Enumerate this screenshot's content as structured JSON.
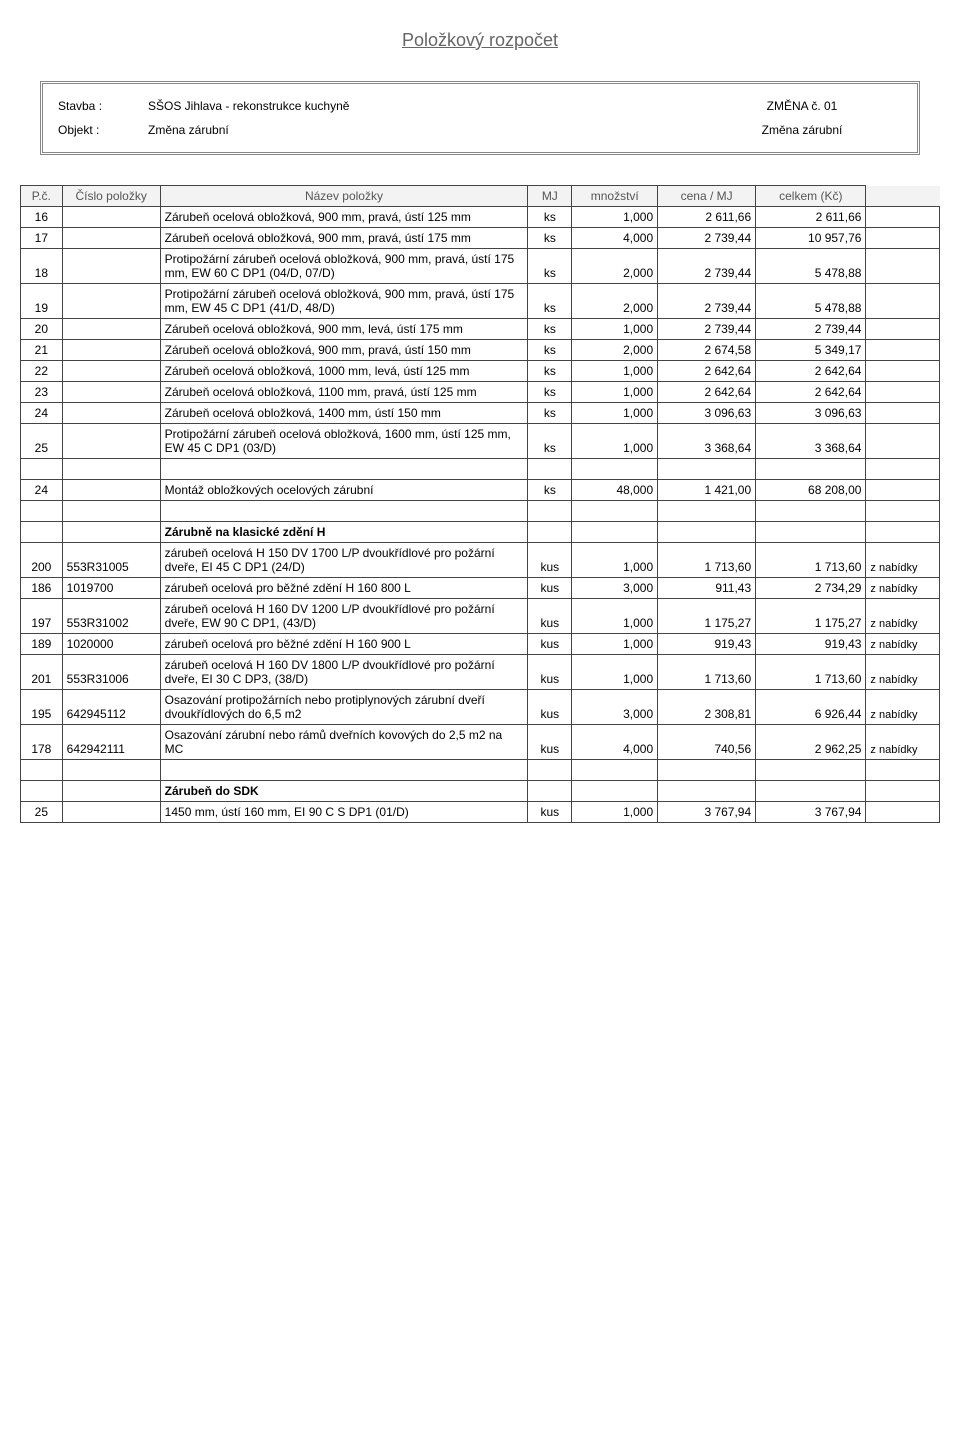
{
  "title": "Položkový rozpočet",
  "header": {
    "stavba_lbl": "Stavba :",
    "stavba_val": "SŠOS Jihlava - rekonstrukce kuchyně",
    "zmena_lbl": "ZMĚNA č. 01",
    "objekt_lbl": "Objekt :",
    "objekt_val": "Změna zárubní",
    "objekt_right": "Změna zárubní"
  },
  "columns": {
    "pc": "P.č.",
    "cislo": "Číslo položky",
    "nazev": "Název položky",
    "mj": "MJ",
    "mnoz": "množství",
    "cena": "cena / MJ",
    "celkem": "celkem (Kč)"
  },
  "rows": [
    {
      "pc": "16",
      "cislo": "",
      "nazev": "Zárubeň ocelová obložková, 900 mm, pravá, ústí 125 mm",
      "mj": "ks",
      "mnoz": "1,000",
      "cena": "2 611,66",
      "celkem": "2 611,66",
      "note": ""
    },
    {
      "pc": "17",
      "cislo": "",
      "nazev": "Zárubeň ocelová obložková, 900 mm, pravá, ústí 175 mm",
      "mj": "ks",
      "mnoz": "4,000",
      "cena": "2 739,44",
      "celkem": "10 957,76",
      "note": ""
    },
    {
      "pc": "18",
      "cislo": "",
      "nazev": "Protipožární zárubeň ocelová obložková, 900 mm, pravá, ústí 175 mm, EW 60 C DP1 (04/D, 07/D)",
      "mj": "ks",
      "mnoz": "2,000",
      "cena": "2 739,44",
      "celkem": "5 478,88",
      "note": ""
    },
    {
      "pc": "19",
      "cislo": "",
      "nazev": "Protipožární zárubeň ocelová obložková, 900 mm, pravá, ústí 175 mm, EW 45 C DP1 (41/D, 48/D)",
      "mj": "ks",
      "mnoz": "2,000",
      "cena": "2 739,44",
      "celkem": "5 478,88",
      "note": ""
    },
    {
      "pc": "20",
      "cislo": "",
      "nazev": "Zárubeň ocelová obložková, 900 mm, levá, ústí 175 mm",
      "mj": "ks",
      "mnoz": "1,000",
      "cena": "2 739,44",
      "celkem": "2 739,44",
      "note": ""
    },
    {
      "pc": "21",
      "cislo": "",
      "nazev": "Zárubeň ocelová obložková, 900 mm, pravá, ústí 150 mm",
      "mj": "ks",
      "mnoz": "2,000",
      "cena": "2 674,58",
      "celkem": "5 349,17",
      "note": ""
    },
    {
      "pc": "22",
      "cislo": "",
      "nazev": "Zárubeň ocelová obložková, 1000 mm, levá, ústí 125 mm",
      "mj": "ks",
      "mnoz": "1,000",
      "cena": "2 642,64",
      "celkem": "2 642,64",
      "note": ""
    },
    {
      "pc": "23",
      "cislo": "",
      "nazev": "Zárubeň ocelová obložková, 1100 mm, pravá, ústí 125 mm",
      "mj": "ks",
      "mnoz": "1,000",
      "cena": "2 642,64",
      "celkem": "2 642,64",
      "note": ""
    },
    {
      "pc": "24",
      "cislo": "",
      "nazev": "Zárubeň ocelová obložková, 1400 mm, ústí 150 mm",
      "mj": "ks",
      "mnoz": "1,000",
      "cena": "3 096,63",
      "celkem": "3 096,63",
      "note": ""
    },
    {
      "pc": "25",
      "cislo": "",
      "nazev": "Protipožární zárubeň ocelová obložková, 1600 mm, ústí 125 mm, EW 45 C DP1 (03/D)",
      "mj": "ks",
      "mnoz": "1,000",
      "cena": "3 368,64",
      "celkem": "3 368,64",
      "note": ""
    },
    {
      "spacer": true
    },
    {
      "pc": "24",
      "cislo": "",
      "nazev": "Montáž obložkových ocelových zárubní",
      "mj": "ks",
      "mnoz": "48,000",
      "cena": "1 421,00",
      "celkem": "68 208,00",
      "note": ""
    },
    {
      "spacer": true
    },
    {
      "section": "Zárubně na klasické zdění H"
    },
    {
      "pc": "200",
      "cislo": "553R31005",
      "nazev": "zárubeň ocelová  H 150 DV 1700 L/P dvoukřídlové pro požární dveře, EI 45 C DP1 (24/D)",
      "mj": "kus",
      "mnoz": "1,000",
      "cena": "1 713,60",
      "celkem": "1 713,60",
      "note": "z nabídky"
    },
    {
      "pc": "186",
      "cislo": "1019700",
      "nazev": "zárubeň ocelová pro běžné zdění H 160 800 L",
      "mj": "kus",
      "mnoz": "3,000",
      "cena": "911,43",
      "celkem": "2 734,29",
      "note": "z nabídky"
    },
    {
      "pc": "197",
      "cislo": "553R31002",
      "nazev": "zárubeň ocelová  H 160 DV 1200 L/P dvoukřídlové pro požární dveře, EW 90 C DP1, (43/D)",
      "mj": "kus",
      "mnoz": "1,000",
      "cena": "1 175,27",
      "celkem": "1 175,27",
      "note": "z nabídky"
    },
    {
      "pc": "189",
      "cislo": "1020000",
      "nazev": "zárubeň ocelová pro běžné zdění H 160 900 L",
      "mj": "kus",
      "mnoz": "1,000",
      "cena": "919,43",
      "celkem": "919,43",
      "note": "z nabídky"
    },
    {
      "pc": "201",
      "cislo": "553R31006",
      "nazev": "zárubeň ocelová  H 160 DV 1800 L/P dvoukřídlové pro požární dveře, EI 30 C DP3, (38/D)",
      "mj": "kus",
      "mnoz": "1,000",
      "cena": "1 713,60",
      "celkem": "1 713,60",
      "note": "z nabídky"
    },
    {
      "pc": "195",
      "cislo": "642945112",
      "nazev": "Osazování protipožárních nebo protiplynových zárubní dveří dvoukřídlových do 6,5 m2",
      "mj": "kus",
      "mnoz": "3,000",
      "cena": "2 308,81",
      "celkem": "6 926,44",
      "note": "z nabídky"
    },
    {
      "pc": "178",
      "cislo": "642942111",
      "nazev": "Osazování zárubní nebo rámů dveřních kovových do 2,5 m2 na MC",
      "mj": "kus",
      "mnoz": "4,000",
      "cena": "740,56",
      "celkem": "2 962,25",
      "note": "z nabídky"
    },
    {
      "spacer": true
    },
    {
      "section": "Zárubeň do SDK"
    },
    {
      "pc": "25",
      "cislo": "",
      "nazev": "1450 mm, ústí 160 mm, EI 90 C S DP1 (01/D)",
      "mj": "kus",
      "mnoz": "1,000",
      "cena": "3 767,94",
      "celkem": "3 767,94",
      "note": ""
    }
  ]
}
